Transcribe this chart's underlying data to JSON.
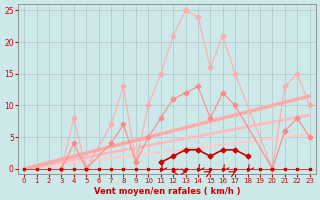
{
  "bg_color": "#cce8e8",
  "grid_color": "#aabbbb",
  "xlabel": "Vent moyen/en rafales ( km/h )",
  "xlabel_color": "#cc0000",
  "tick_color": "#cc0000",
  "axis_color": "#888888",
  "xlim": [
    -0.5,
    23.5
  ],
  "ylim": [
    -0.8,
    26
  ],
  "xticks": [
    0,
    1,
    2,
    3,
    4,
    5,
    6,
    7,
    8,
    9,
    10,
    11,
    12,
    13,
    14,
    15,
    16,
    17,
    18,
    19,
    20,
    21,
    22,
    23
  ],
  "yticks": [
    0,
    5,
    10,
    15,
    20,
    25
  ],
  "series_rafales": {
    "x": [
      3,
      4,
      5,
      7,
      8,
      9,
      10,
      11,
      12,
      13,
      14,
      15,
      16,
      17,
      20,
      21,
      22,
      23
    ],
    "y": [
      0,
      8,
      0,
      7,
      13,
      1,
      10,
      15,
      21,
      25,
      24,
      16,
      21,
      15,
      0,
      13,
      15,
      10
    ],
    "color": "#ffaaaa",
    "marker": "D",
    "ms": 2.5,
    "lw": 0.8
  },
  "series_moyen": {
    "x": [
      3,
      4,
      5,
      7,
      8,
      9,
      10,
      11,
      12,
      13,
      14,
      15,
      16,
      17,
      20,
      21,
      22,
      23
    ],
    "y": [
      0,
      4,
      0,
      4,
      7,
      1,
      5,
      8,
      11,
      12,
      13,
      8,
      12,
      10,
      0,
      6,
      8,
      5
    ],
    "color": "#ff8888",
    "marker": "D",
    "ms": 2.5,
    "lw": 0.8
  },
  "series_count": {
    "x": [
      11,
      12,
      13,
      14,
      15,
      16,
      17,
      18
    ],
    "y": [
      1,
      2,
      3,
      3,
      2,
      3,
      3,
      2
    ],
    "color": "#cc0000",
    "marker": "D",
    "ms": 2.5,
    "lw": 1.2
  },
  "series_flat": {
    "x": [
      0,
      1,
      2,
      3,
      4,
      5,
      6,
      7,
      8,
      9,
      10,
      11,
      12,
      13,
      14,
      15,
      16,
      17,
      18,
      19,
      20,
      21,
      22,
      23
    ],
    "y": [
      0,
      0,
      0,
      0,
      0,
      0,
      0,
      0,
      0,
      0,
      0,
      0,
      0,
      0,
      0,
      0,
      0,
      0,
      0,
      0,
      0,
      0,
      0,
      0
    ],
    "color": "#cc0000",
    "marker": "s",
    "ms": 2.0,
    "lw": 0.5
  },
  "trend1": {
    "x": [
      0,
      23
    ],
    "y": [
      0,
      11.5
    ],
    "color": "#ffaaaa",
    "lw": 2.5
  },
  "trend2": {
    "x": [
      0,
      23
    ],
    "y": [
      0,
      8.5
    ],
    "color": "#ffbbbb",
    "lw": 2.0
  },
  "trend3": {
    "x": [
      0,
      23
    ],
    "y": [
      0,
      5.5
    ],
    "color": "#ffcccc",
    "lw": 1.5
  },
  "wind_arrows": {
    "positions": [
      11,
      12,
      13,
      14,
      15,
      16,
      17,
      18
    ],
    "angles_deg": [
      200,
      270,
      90,
      200,
      45,
      200,
      45,
      200
    ],
    "color": "#cc0000",
    "y": -0.45
  }
}
